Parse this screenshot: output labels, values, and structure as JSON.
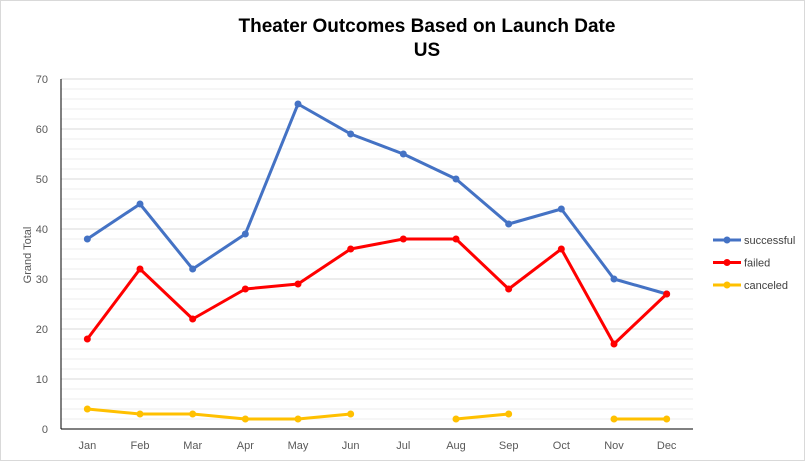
{
  "chart_data": {
    "type": "line",
    "title": "Theater Outcomes Based on Launch Date",
    "subtitle": "US",
    "xlabel": "",
    "ylabel": "Grand Total",
    "categories": [
      "Jan",
      "Feb",
      "Mar",
      "Apr",
      "May",
      "Jun",
      "Jul",
      "Aug",
      "Sep",
      "Oct",
      "Nov",
      "Dec"
    ],
    "ylim": [
      0,
      70
    ],
    "yticks": [
      0,
      10,
      20,
      30,
      40,
      50,
      60,
      70
    ],
    "grid": true,
    "legend_position": "right",
    "series": [
      {
        "name": "successful",
        "color": "#4472C4",
        "values": [
          38,
          45,
          32,
          39,
          65,
          59,
          55,
          50,
          41,
          44,
          30,
          27
        ]
      },
      {
        "name": "failed",
        "color": "#FF0000",
        "values": [
          18,
          32,
          22,
          28,
          29,
          36,
          38,
          38,
          28,
          36,
          17,
          27
        ]
      },
      {
        "name": "canceled",
        "color": "#FFC000",
        "values": [
          4,
          3,
          3,
          2,
          2,
          3,
          null,
          2,
          3,
          null,
          2,
          2
        ]
      }
    ]
  }
}
